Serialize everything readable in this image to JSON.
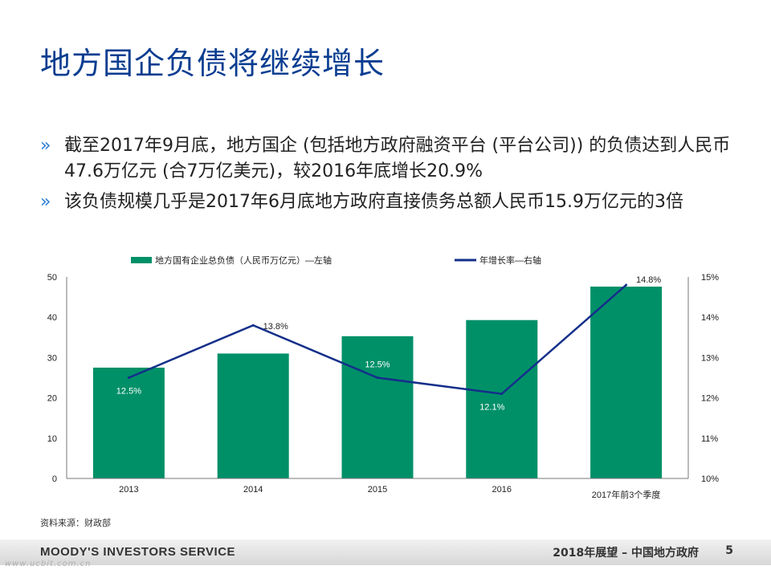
{
  "title": "地方国企负债将继续增长",
  "bullets": [
    "截至2017年9月底，地方国企 (包括地方政府融资平台 (平台公司)) 的负债达到人民币47.6万亿元 (合7万亿美元)，较2016年底增长20.9%",
    "该负债规模几乎是2017年6月底地方政府直接债务总额人民币15.9万亿元的3倍"
  ],
  "bullet_marker": "»",
  "chart_data": {
    "type": "bar",
    "categories": [
      "2013",
      "2014",
      "2015",
      "2016",
      "2017年前3个季度"
    ],
    "series": [
      {
        "name": "地方国有企业总负债（人民币万亿元）—左轴",
        "type": "bar",
        "axis": "left",
        "values": [
          27.5,
          31,
          35.3,
          39.3,
          47.6
        ],
        "color": "#009068"
      },
      {
        "name": "年增长率—右轴",
        "type": "line",
        "axis": "right",
        "values": [
          12.5,
          13.8,
          12.5,
          12.1,
          14.8
        ],
        "data_labels": [
          "12.5%",
          "13.8%",
          "12.5%",
          "12.1%",
          "14.8%"
        ],
        "color": "#142f8a"
      }
    ],
    "y_left": {
      "ylim": [
        0,
        50
      ],
      "ticks": [
        "0",
        "10",
        "20",
        "30",
        "40",
        "50"
      ]
    },
    "y_right": {
      "ylim": [
        10,
        15
      ],
      "ticks": [
        "10%",
        "11%",
        "12%",
        "13%",
        "14%",
        "15%"
      ]
    },
    "legend_position": "top",
    "grid": false
  },
  "source": "资料来源：财政部",
  "footer": {
    "brand": "MOODY'S INVESTORS SERVICE",
    "report": "2018年展望 – 中国地方政府",
    "page": "5"
  },
  "watermark": "www.ucbit.com.cn"
}
